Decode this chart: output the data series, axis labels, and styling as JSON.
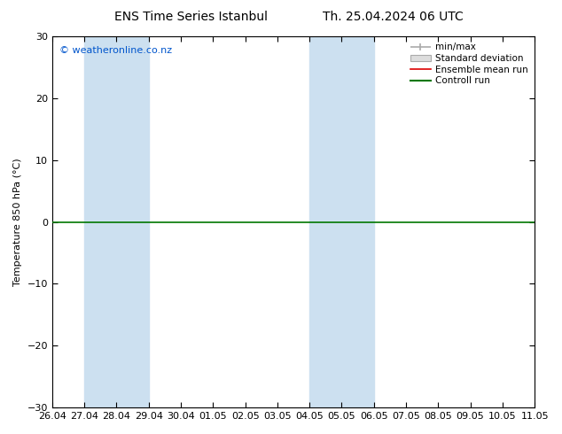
{
  "title_left": "ENS Time Series Istanbul",
  "title_right": "Th. 25.04.2024 06 UTC",
  "ylabel": "Temperature 850 hPa (°C)",
  "ylim": [
    -30,
    30
  ],
  "yticks": [
    -30,
    -20,
    -10,
    0,
    10,
    20,
    30
  ],
  "xlabels": [
    "26.04",
    "27.04",
    "28.04",
    "29.04",
    "30.04",
    "01.05",
    "02.05",
    "03.05",
    "04.05",
    "05.05",
    "06.05",
    "07.05",
    "08.05",
    "09.05",
    "10.05",
    "11.05"
  ],
  "copyright_text": "© weatheronline.co.nz",
  "copyright_color": "#0055cc",
  "background_color": "#ffffff",
  "plot_bg_color": "#ffffff",
  "shade_color": "#cce0f0",
  "shade_ranges_idx": [
    [
      1,
      3
    ],
    [
      8,
      10
    ]
  ],
  "zero_line_color": "#007700",
  "legend_items": [
    "min/max",
    "Standard deviation",
    "Ensemble mean run",
    "Controll run"
  ],
  "legend_line_colors": [
    "#aaaaaa",
    "#cccccc",
    "#dd0000",
    "#007700"
  ],
  "title_fontsize": 10,
  "label_fontsize": 8,
  "tick_fontsize": 8,
  "legend_fontsize": 7.5
}
